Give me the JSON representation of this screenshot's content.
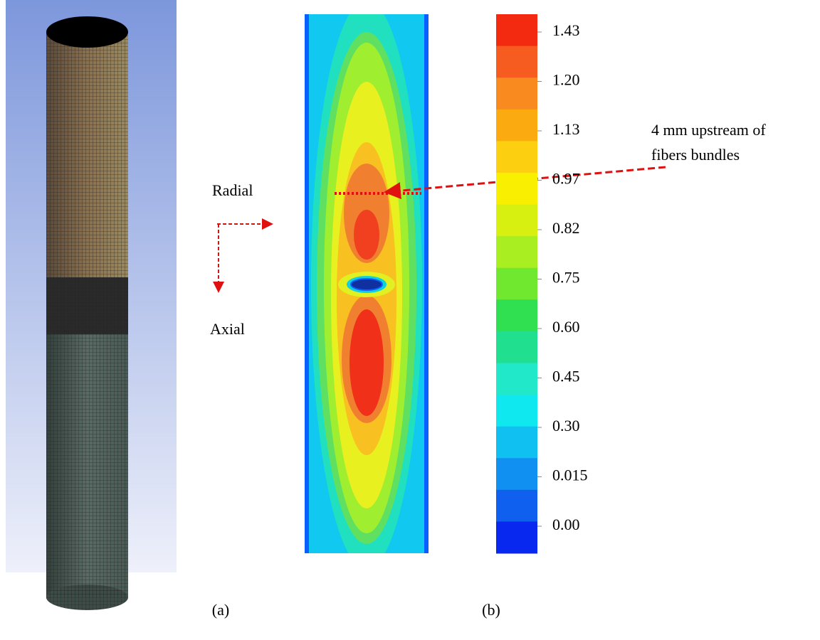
{
  "annotations": {
    "radial": "Radial",
    "axial": "Axial",
    "note": [
      "4 mm upstream of",
      "fibers bundles"
    ]
  },
  "colorbar": {
    "labels": [
      "1.43",
      "1.20",
      "1.13",
      "0.97",
      "0.82",
      "0.75",
      "0.60",
      "0.45",
      "0.30",
      "0.015",
      "0.00"
    ]
  },
  "panels": {
    "a": {
      "label": "(a)"
    },
    "b": {
      "label": "(b)"
    }
  }
}
